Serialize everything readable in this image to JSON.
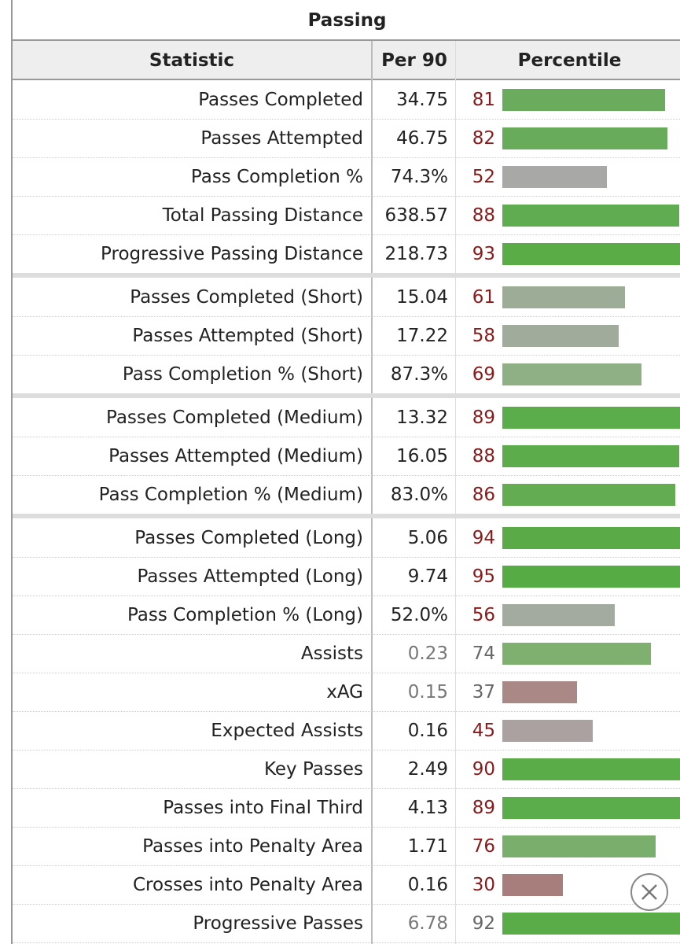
{
  "title": "Passing",
  "header": [
    "Statistic",
    "Per 90",
    "Percentile"
  ],
  "groups": [
    [
      {
        "stat": "Passes Completed",
        "per90": "34.75",
        "percentile": 81,
        "color": "#6aab5e",
        "muted": false
      },
      {
        "stat": "Passes Attempted",
        "per90": "46.75",
        "percentile": 82,
        "color": "#68ab5b",
        "muted": false
      },
      {
        "stat": "Pass Completion %",
        "per90": "74.3%",
        "percentile": 52,
        "color": "#a8a9a6",
        "muted": false
      },
      {
        "stat": "Total Passing Distance",
        "per90": "638.57",
        "percentile": 88,
        "color": "#5fad50",
        "muted": false
      },
      {
        "stat": "Progressive Passing Distance",
        "per90": "218.73",
        "percentile": 93,
        "color": "#5aac47",
        "muted": false
      }
    ],
    [
      {
        "stat": "Passes Completed (Short)",
        "per90": "15.04",
        "percentile": 61,
        "color": "#9cac97",
        "muted": false
      },
      {
        "stat": "Passes Attempted (Short)",
        "per90": "17.22",
        "percentile": 58,
        "color": "#a0ab9c",
        "muted": false
      },
      {
        "stat": "Pass Completion % (Short)",
        "per90": "87.3%",
        "percentile": 69,
        "color": "#8eb084",
        "muted": false
      }
    ],
    [
      {
        "stat": "Passes Completed (Medium)",
        "per90": "13.32",
        "percentile": 89,
        "color": "#5bac4a",
        "muted": false
      },
      {
        "stat": "Passes Attempted (Medium)",
        "per90": "16.05",
        "percentile": 88,
        "color": "#5dac4c",
        "muted": false
      },
      {
        "stat": "Pass Completion % (Medium)",
        "per90": "83.0%",
        "percentile": 86,
        "color": "#63ac52",
        "muted": false
      }
    ],
    [
      {
        "stat": "Passes Completed (Long)",
        "per90": "5.06",
        "percentile": 94,
        "color": "#5aab47",
        "muted": false
      },
      {
        "stat": "Passes Attempted (Long)",
        "per90": "9.74",
        "percentile": 95,
        "color": "#56ab45",
        "muted": false
      },
      {
        "stat": "Pass Completion % (Long)",
        "per90": "52.0%",
        "percentile": 56,
        "color": "#a3aa9f",
        "muted": false
      },
      {
        "stat": "Assists",
        "per90": "0.23",
        "percentile": 74,
        "color": "#7fb06f",
        "muted": true
      },
      {
        "stat": "xAG",
        "per90": "0.15",
        "percentile": 37,
        "color": "#a98886",
        "muted": true
      },
      {
        "stat": "Expected Assists",
        "per90": "0.16",
        "percentile": 45,
        "color": "#aba1a0",
        "muted": false
      },
      {
        "stat": "Key Passes",
        "per90": "2.49",
        "percentile": 90,
        "color": "#5aac48",
        "muted": false
      },
      {
        "stat": "Passes into Final Third",
        "per90": "4.13",
        "percentile": 89,
        "color": "#5bac4a",
        "muted": false
      },
      {
        "stat": "Passes into Penalty Area",
        "per90": "1.71",
        "percentile": 76,
        "color": "#7aae6c",
        "muted": false
      },
      {
        "stat": "Crosses into Penalty Area",
        "per90": "0.16",
        "percentile": 30,
        "color": "#a87e7c",
        "muted": false
      },
      {
        "stat": "Progressive Passes",
        "per90": "6.78",
        "percentile": 92,
        "color": "#5aac48",
        "muted": true
      }
    ]
  ]
}
